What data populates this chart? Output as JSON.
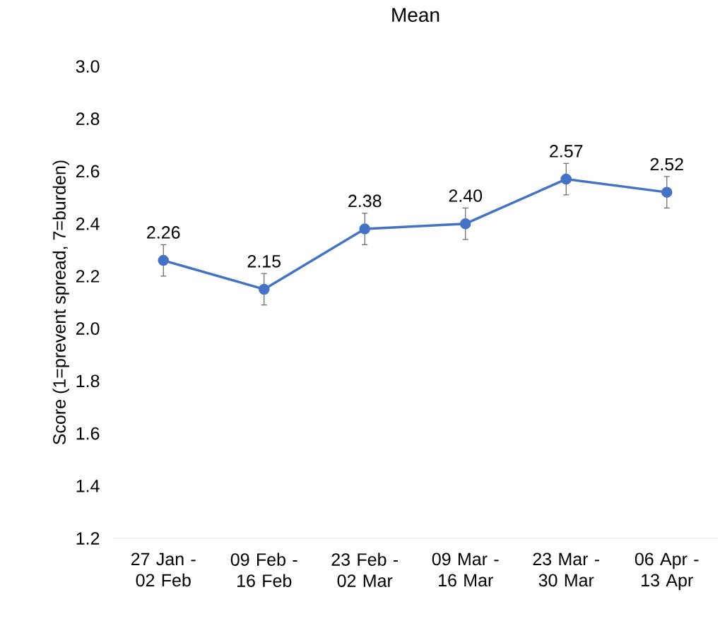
{
  "chart_data": {
    "type": "line",
    "title": "Mean",
    "ylabel": "Score (1=prevent spread, 7=burden)",
    "categories": [
      "27 Jan - 02 Feb",
      "09 Feb - 16 Feb",
      "23 Feb - 02 Mar",
      "09 Mar - 16 Mar",
      "23 Mar - 30 Mar",
      "06 Apr - 13 Apr"
    ],
    "values": [
      2.26,
      2.15,
      2.38,
      2.4,
      2.57,
      2.52
    ],
    "value_labels": [
      "2.26",
      "2.15",
      "2.38",
      "2.40",
      "2.57",
      "2.52"
    ],
    "errors": [
      0.06,
      0.06,
      0.06,
      0.06,
      0.06,
      0.06
    ],
    "color": "#4472c4",
    "marker": "circle",
    "ylim": [
      1.2,
      3.0
    ],
    "yticks": [
      {
        "value": 1.2,
        "label": "1.2"
      },
      {
        "value": 1.4,
        "label": "1.4"
      },
      {
        "value": 1.6,
        "label": "1.6"
      },
      {
        "value": 1.8,
        "label": "1.8"
      },
      {
        "value": 2.0,
        "label": "2.0"
      },
      {
        "value": 2.2,
        "label": "2.2"
      },
      {
        "value": 2.4,
        "label": "2.4"
      },
      {
        "value": 2.6,
        "label": "2.6"
      },
      {
        "value": 2.8,
        "label": "2.8"
      },
      {
        "value": 3.0,
        "label": "3.0"
      }
    ]
  }
}
